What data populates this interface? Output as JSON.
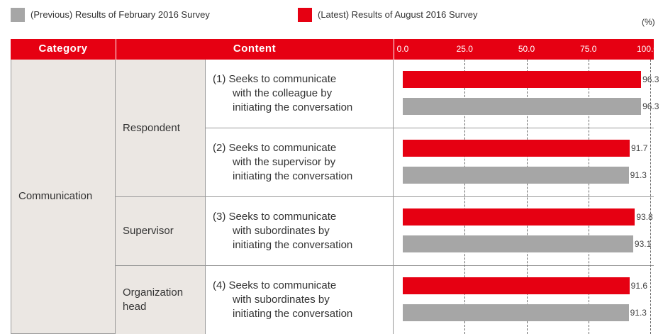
{
  "chart_data": {
    "type": "hbar-table",
    "unit_label": "(%)",
    "headers": [
      "Category",
      "Content"
    ],
    "category": "Communication",
    "groups": [
      "Respondent",
      "Supervisor",
      "Organization\nhead"
    ],
    "categories": [
      "(1) Seeks to communicate\nwith the colleague by\ninitiating the conversation",
      "(2) Seeks to communicate\nwith the supervisor by\ninitiating the conversation",
      "(3) Seeks to communicate\nwith subordinates by\ninitiating the conversation",
      "(4) Seeks to communicate\nwith subordinates by\ninitiating the conversation"
    ],
    "series": [
      {
        "name": "(Previous) Results of February 2016 Survey",
        "color": "#a6a6a6",
        "values": [
          96.3,
          91.3,
          93.1,
          91.3
        ]
      },
      {
        "name": "(Latest) Results of August 2016 Survey",
        "color": "#e60012",
        "values": [
          96.3,
          91.7,
          93.8,
          91.6
        ]
      }
    ],
    "xlim": [
      0,
      100
    ],
    "xticks": [
      {
        "value": 0,
        "label": "0.0"
      },
      {
        "value": 25,
        "label": "25.0"
      },
      {
        "value": 50,
        "label": "50.0"
      },
      {
        "value": 75,
        "label": "75.0"
      },
      {
        "value": 100,
        "label": "100.0"
      }
    ],
    "grid": true
  }
}
